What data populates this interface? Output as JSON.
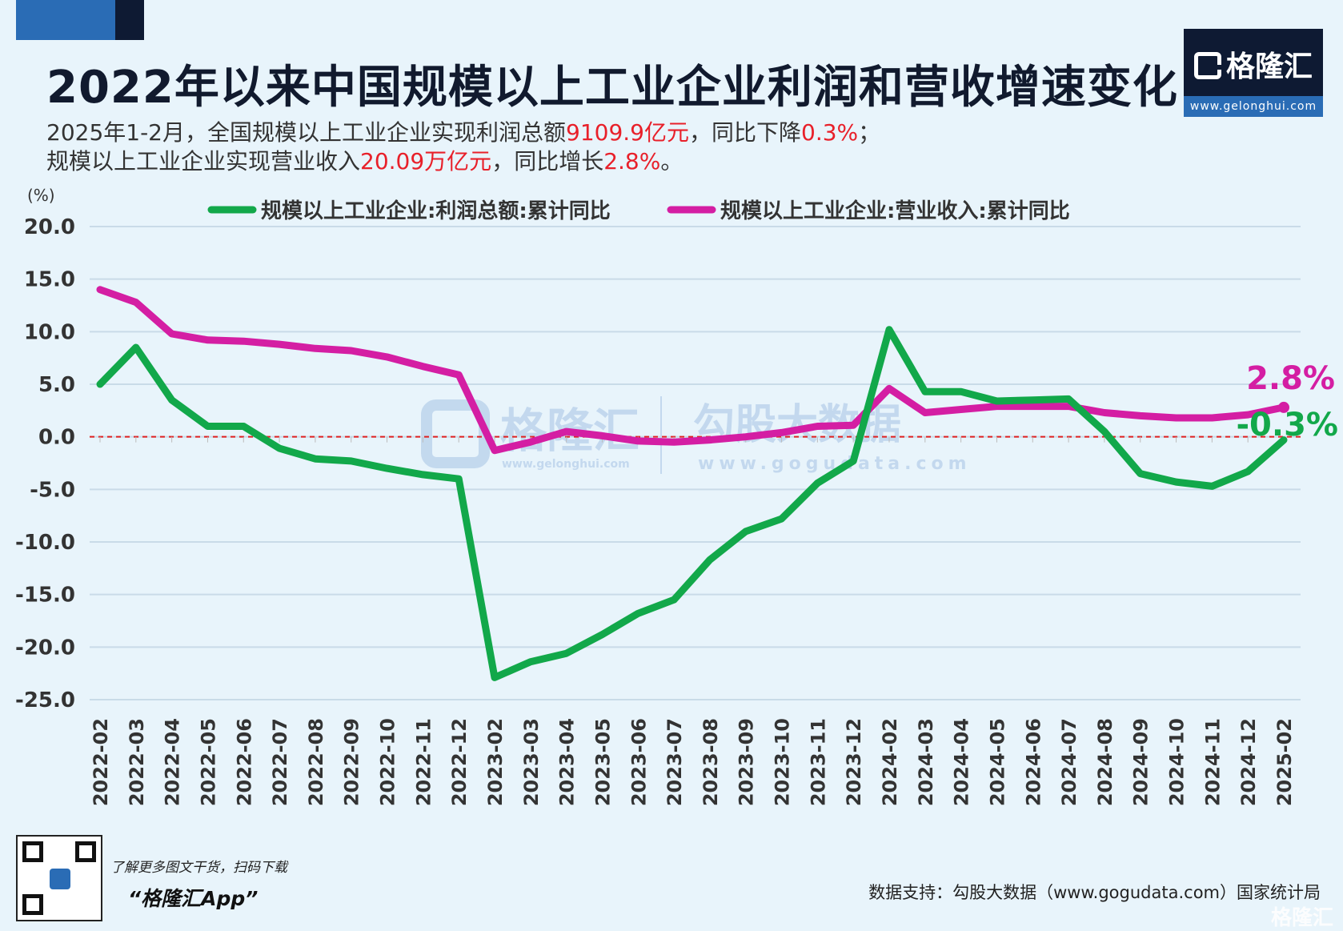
{
  "title": "2022年以来中国规模以上工业企业利润和营收增速变化",
  "subtitle": {
    "line1": {
      "a": "2025年1-2月，全国规模以上工业企业实现利润总额",
      "b": "9109.9亿元",
      "c": "，同比下降",
      "d": "0.3%",
      "e": "；"
    },
    "line2": {
      "a": "规模以上工业企业实现营业收入",
      "b": "20.09万亿元",
      "c": "，同比增长",
      "d": "2.8%",
      "e": "。"
    }
  },
  "logo": {
    "name": "格隆汇",
    "url": "www.gelonghui.com"
  },
  "watermark": {
    "brand1": "格隆汇",
    "brand1_url": "www.gelonghui.com",
    "brand2": "勾股大数据",
    "brand2_url": "www.gogudata.com"
  },
  "footer": {
    "qr_caption": "了解更多图文干货，扫码下载",
    "qr_app": "“格隆汇App”",
    "source": "数据支持：勾股大数据（www.gogudata.com）国家统计局",
    "corner_brand": "格隆汇"
  },
  "chart_data": {
    "type": "line",
    "unit_label": "(%)",
    "ylim": [
      -25,
      20
    ],
    "yticks": [
      "20.0",
      "15.0",
      "10.0",
      "5.0",
      "0.0",
      "-5.0",
      "-10.0",
      "-15.0",
      "-20.0",
      "-25.0"
    ],
    "ytick_values": [
      20,
      15,
      10,
      5,
      0,
      -5,
      -10,
      -15,
      -20,
      -25
    ],
    "grid": true,
    "zero_line": "dashed red",
    "legend_position": "top",
    "categories": [
      "2022-02",
      "2022-03",
      "2022-04",
      "2022-05",
      "2022-06",
      "2022-07",
      "2022-08",
      "2022-09",
      "2022-10",
      "2022-11",
      "2022-12",
      "2023-02",
      "2023-03",
      "2023-04",
      "2023-05",
      "2023-06",
      "2023-07",
      "2023-08",
      "2023-09",
      "2023-10",
      "2023-11",
      "2023-12",
      "2024-02",
      "2024-03",
      "2024-04",
      "2024-05",
      "2024-06",
      "2024-07",
      "2024-08",
      "2024-09",
      "2024-10",
      "2024-11",
      "2024-12",
      "2025-02"
    ],
    "series": [
      {
        "name": "规模以上工业企业:利润总额:累计同比",
        "color": "#12a84a",
        "values": [
          5.0,
          8.5,
          3.5,
          1.0,
          1.0,
          -1.1,
          -2.1,
          -2.3,
          -3.0,
          -3.6,
          -4.0,
          -22.9,
          -21.4,
          -20.6,
          -18.8,
          -16.8,
          -15.5,
          -11.7,
          -9.0,
          -7.8,
          -4.4,
          -2.3,
          10.2,
          4.3,
          4.3,
          3.4,
          3.5,
          3.6,
          0.5,
          -3.5,
          -4.3,
          -4.7,
          -3.3,
          -0.3
        ],
        "end_label": "-0.3%"
      },
      {
        "name": "规模以上工业企业:营业收入:累计同比",
        "color": "#d41ea3",
        "values": [
          14.0,
          12.8,
          9.8,
          9.2,
          9.1,
          8.8,
          8.4,
          8.2,
          7.6,
          6.7,
          5.9,
          -1.3,
          -0.5,
          0.5,
          0.1,
          -0.4,
          -0.5,
          -0.3,
          0.0,
          0.4,
          1.0,
          1.1,
          4.6,
          2.3,
          2.6,
          2.9,
          2.9,
          2.9,
          2.3,
          2.0,
          1.8,
          1.8,
          2.1,
          2.8
        ],
        "end_label": "2.8%"
      }
    ]
  }
}
